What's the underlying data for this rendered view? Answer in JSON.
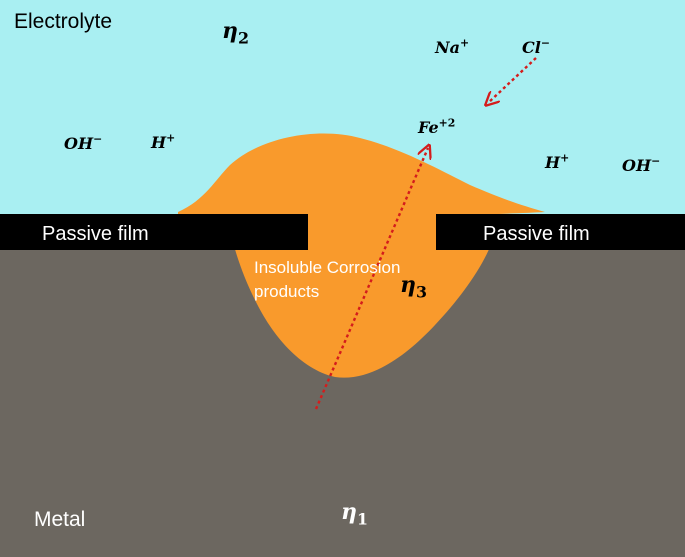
{
  "colors": {
    "electrolyte": "#a9eff2",
    "metal": "#6c6760",
    "passive_film": "#000000",
    "corrosion_products": "#f99a2c",
    "arrow": "#d41c1c",
    "label_on_dark": "#ffffff",
    "label_on_light": "#000000"
  },
  "regions": {
    "electrolyte_label": "Electrolyte",
    "metal_label": "Metal",
    "passive_film_left": "Passive film",
    "passive_film_right": "Passive film",
    "corrosion_label_line1": "Insoluble Corrosion",
    "corrosion_label_line2": "products"
  },
  "symbols": {
    "eta2": {
      "base": "η",
      "sub": "2"
    },
    "eta3": {
      "base": "η",
      "sub": "3"
    },
    "eta1": {
      "base": "η",
      "sub": "1"
    }
  },
  "ions": {
    "na": {
      "base": "Na",
      "sup": "+"
    },
    "cl": {
      "base": "Cl",
      "sup": "−"
    },
    "fe": {
      "base": "Fe",
      "sup": "+2"
    },
    "oh_left": {
      "base": "OH",
      "sup": "−"
    },
    "h_left": {
      "base": "H",
      "sup": "+"
    },
    "h_right": {
      "base": "H",
      "sup": "+"
    },
    "oh_right": {
      "base": "OH",
      "sup": "−"
    }
  }
}
